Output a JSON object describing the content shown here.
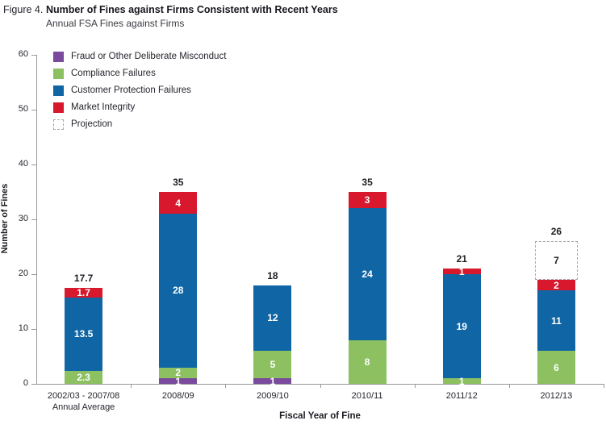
{
  "header": {
    "figure_label": "Figure 4.",
    "title": "Number of Fines against Firms Consistent with Recent Years",
    "subtitle": "Annual FSA Fines against Firms"
  },
  "colors": {
    "fraud": "#7a4a9d",
    "compliance": "#8cc061",
    "customer": "#1066a5",
    "market": "#d7182d",
    "projection_border": "#a6a6a6",
    "axis": "#9a9a9a",
    "text": "#26262e"
  },
  "legend": {
    "items": [
      {
        "key": "fraud",
        "label": "Fraud or Other Deliberate Misconduct"
      },
      {
        "key": "compliance",
        "label": "Compliance Failures"
      },
      {
        "key": "customer",
        "label": "Customer Protection Failures"
      },
      {
        "key": "market",
        "label": "Market Integrity"
      },
      {
        "key": "projection",
        "label": "Projection"
      }
    ]
  },
  "chart_data": {
    "type": "bar",
    "stacked": true,
    "title": "Annual FSA Fines against Firms",
    "xlabel": "Fiscal Year of Fine",
    "ylabel": "Number of Fines",
    "ylim": [
      0,
      60
    ],
    "ytick_step": 10,
    "grid": false,
    "legend_position": "top-left-inside",
    "categories": [
      "2002/03 - 2007/08 Annual Average",
      "2008/09",
      "2009/10",
      "2010/11",
      "2011/12",
      "2012/13"
    ],
    "bars": [
      {
        "category_lines": [
          "2002/03 - 2007/08",
          "Annual Average"
        ],
        "total_label": "17.7",
        "segments": [
          {
            "key": "compliance",
            "value": 2.3,
            "label": "2.3"
          },
          {
            "key": "customer",
            "value": 13.5,
            "label": "13.5"
          },
          {
            "key": "market",
            "value": 1.7,
            "label": "1.7"
          }
        ]
      },
      {
        "category_lines": [
          "2008/09"
        ],
        "total_label": "35",
        "segments": [
          {
            "key": "fraud",
            "value": 1,
            "label": "1"
          },
          {
            "key": "compliance",
            "value": 2,
            "label": "2"
          },
          {
            "key": "customer",
            "value": 28,
            "label": "28"
          },
          {
            "key": "market",
            "value": 4,
            "label": "4"
          }
        ]
      },
      {
        "category_lines": [
          "2009/10"
        ],
        "total_label": "18",
        "segments": [
          {
            "key": "fraud",
            "value": 1,
            "label": "1"
          },
          {
            "key": "compliance",
            "value": 5,
            "label": "5"
          },
          {
            "key": "customer",
            "value": 12,
            "label": "12"
          }
        ]
      },
      {
        "category_lines": [
          "2010/11"
        ],
        "total_label": "35",
        "segments": [
          {
            "key": "compliance",
            "value": 8,
            "label": "8"
          },
          {
            "key": "customer",
            "value": 24,
            "label": "24"
          },
          {
            "key": "market",
            "value": 3,
            "label": "3"
          }
        ]
      },
      {
        "category_lines": [
          "2011/12"
        ],
        "total_label": "21",
        "segments": [
          {
            "key": "compliance",
            "value": 1,
            "label": "1"
          },
          {
            "key": "customer",
            "value": 19,
            "label": "19"
          },
          {
            "key": "market",
            "value": 1,
            "label": "1"
          }
        ]
      },
      {
        "category_lines": [
          "2012/13"
        ],
        "total_label": "26",
        "segments": [
          {
            "key": "compliance",
            "value": 6,
            "label": "6"
          },
          {
            "key": "customer",
            "value": 11,
            "label": "11"
          },
          {
            "key": "market",
            "value": 2,
            "label": "2"
          },
          {
            "key": "projection",
            "value": 7,
            "label": "7"
          }
        ]
      }
    ]
  }
}
